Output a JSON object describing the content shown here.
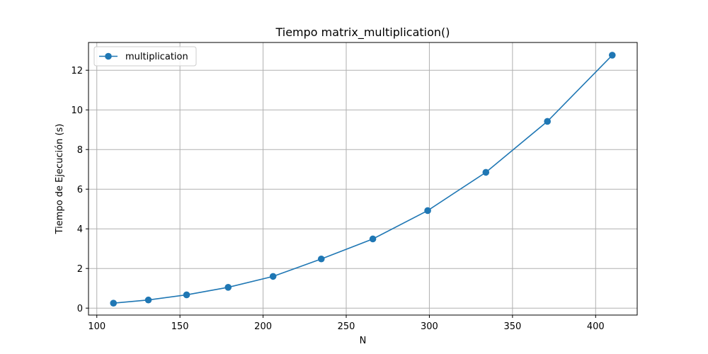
{
  "chart_data": {
    "type": "line",
    "title": "Tiempo matrix_multiplication()",
    "xlabel": "N",
    "ylabel": "Tiempo de Ejecución (s)",
    "xlim": [
      95,
      425
    ],
    "ylim": [
      -0.35,
      13.4
    ],
    "xticks": [
      100,
      150,
      200,
      250,
      300,
      350,
      400
    ],
    "yticks": [
      0,
      2,
      4,
      6,
      8,
      10,
      12
    ],
    "grid": true,
    "legend_position": "top-left",
    "series": [
      {
        "name": "multiplication",
        "color": "#1f77b4",
        "marker": "circle",
        "x": [
          110,
          131,
          154,
          179,
          206,
          235,
          266,
          299,
          334,
          371,
          410
        ],
        "y": [
          0.25,
          0.41,
          0.67,
          1.05,
          1.6,
          2.48,
          3.49,
          4.92,
          6.85,
          9.42,
          12.76
        ]
      }
    ]
  }
}
